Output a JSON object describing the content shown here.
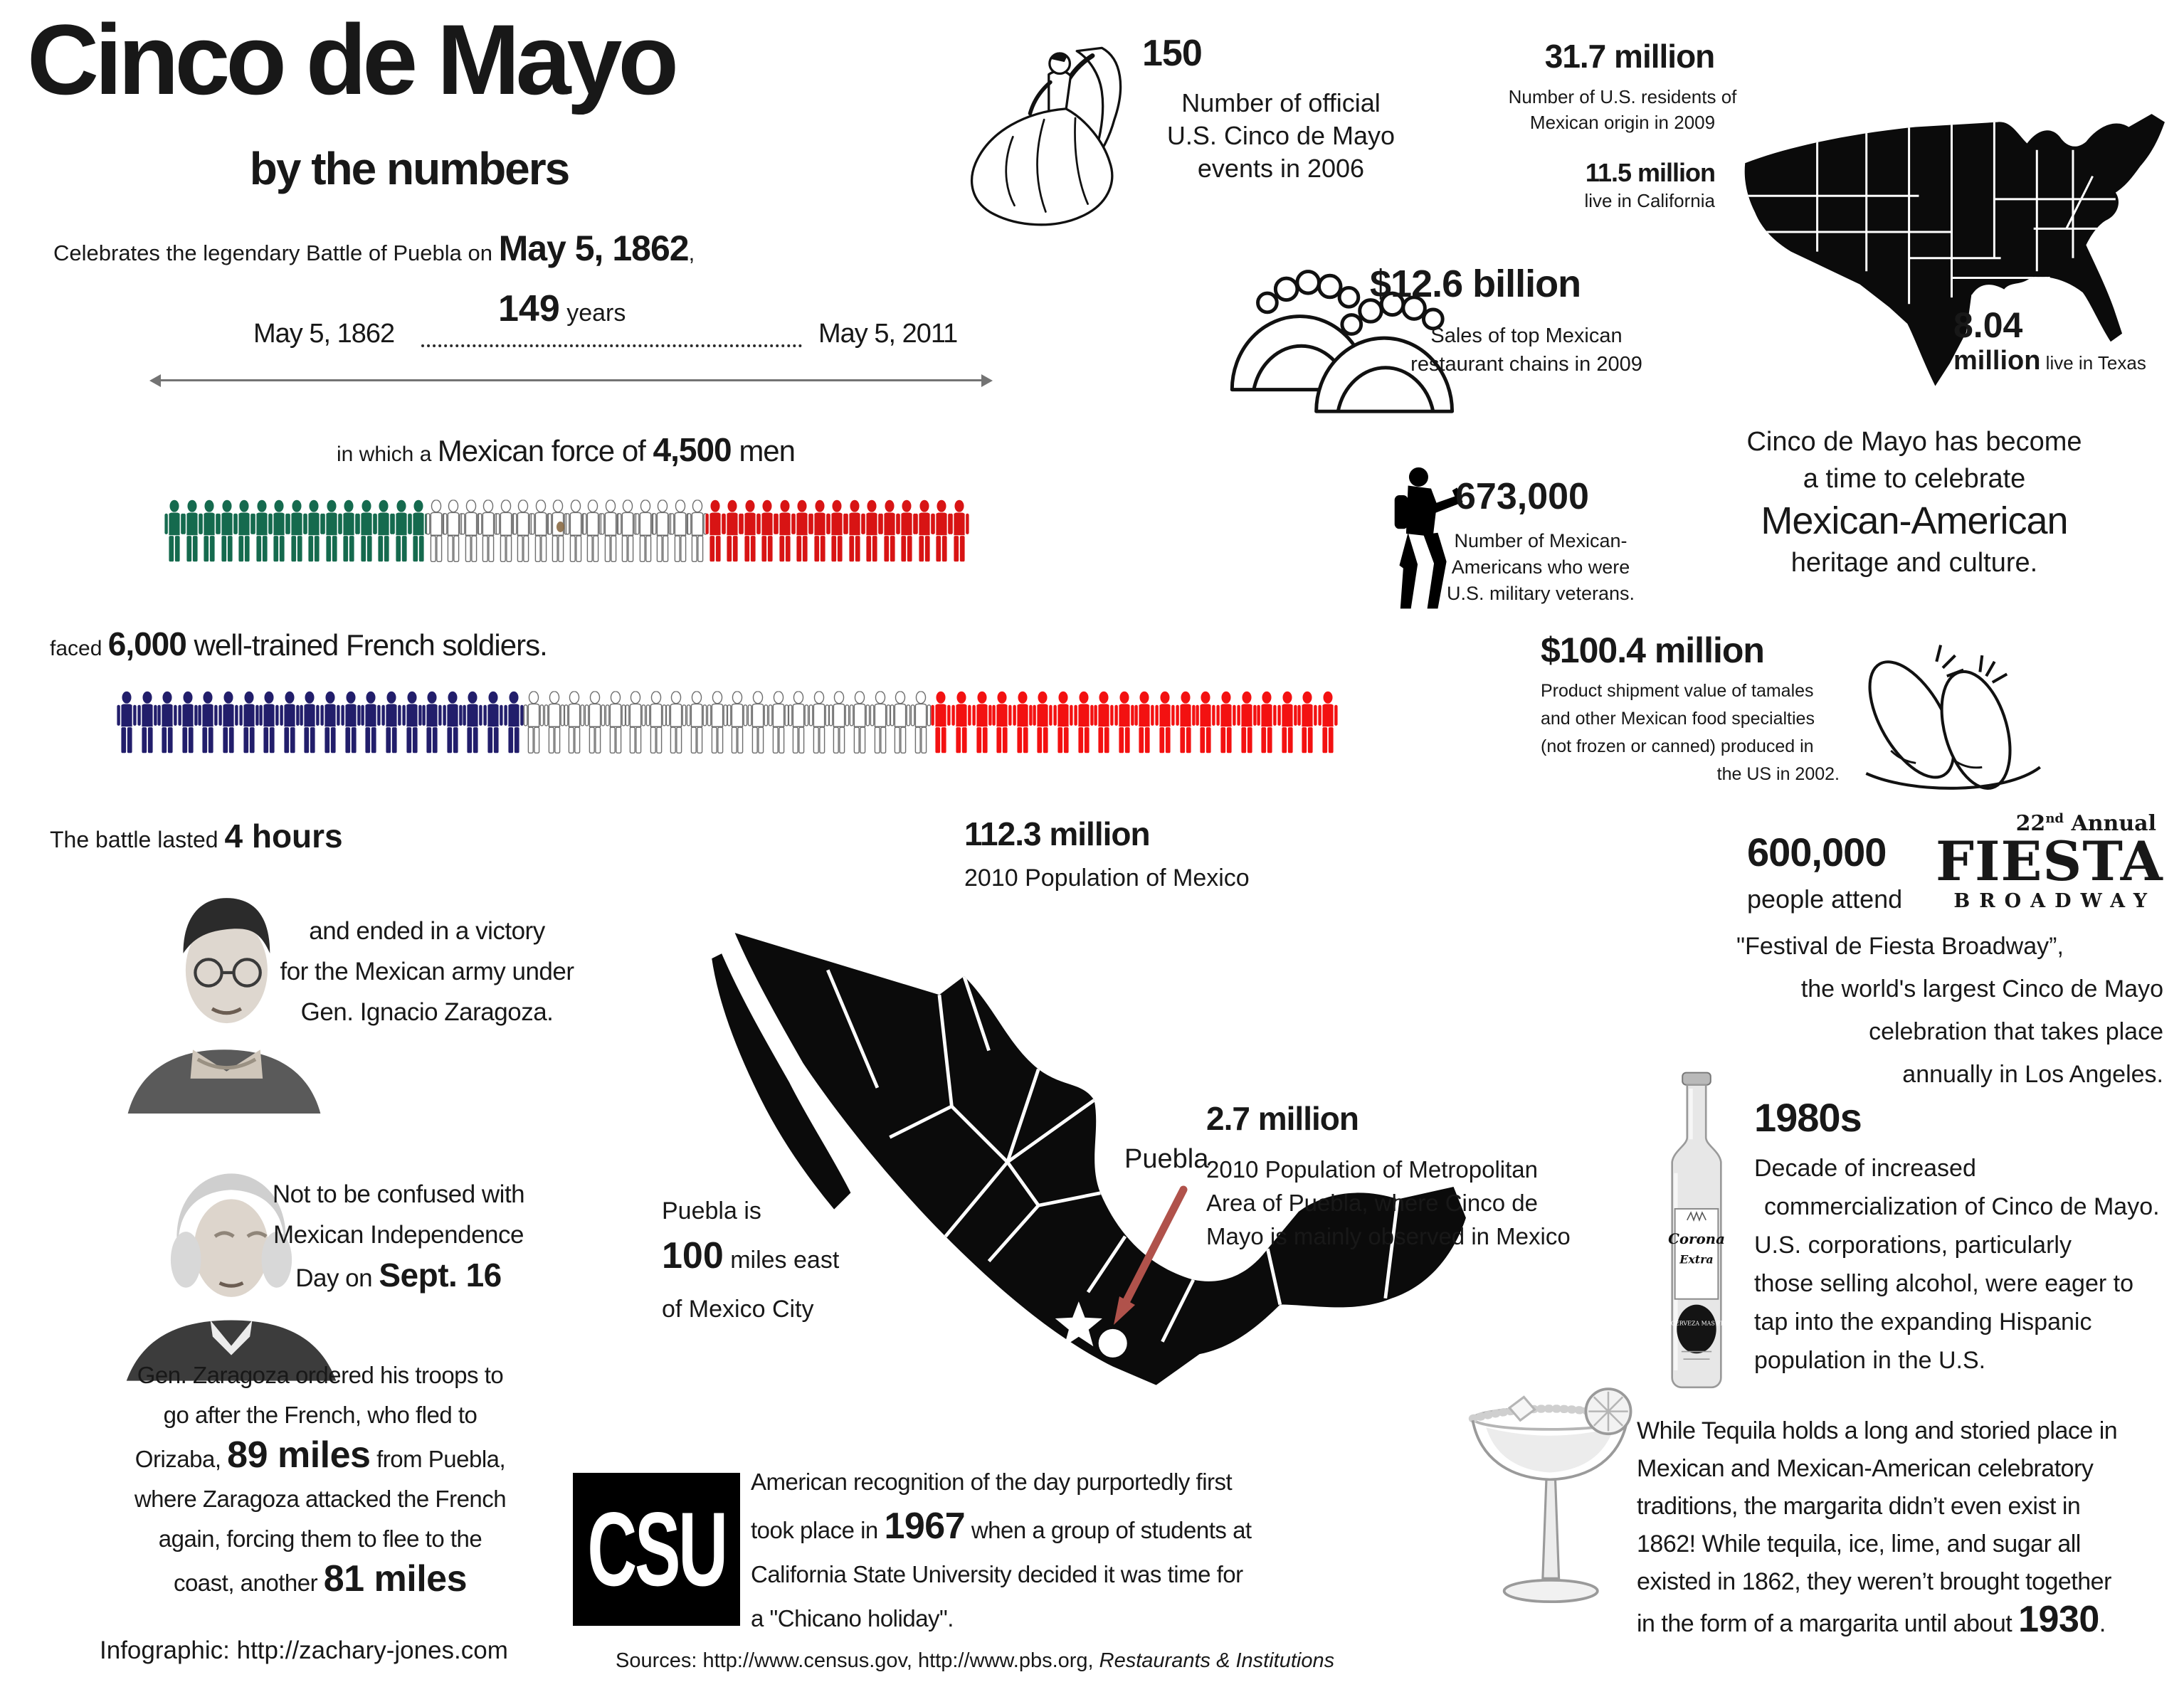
{
  "colors": {
    "mexican_green": "#156a4e",
    "french_navy": "#221e6b",
    "mexican_red": "#d81414",
    "french_red": "#f31111",
    "puebla_arrow": "#b0524b",
    "text": "#181818"
  },
  "title": {
    "main": "Cinco de Mayo",
    "subtitle": "by the numbers"
  },
  "intro": {
    "prefix": "Celebrates the legendary Battle of Puebla on ",
    "date": "May 5, 1862",
    "suffix": ","
  },
  "timeline": {
    "start": "May 5, 1862",
    "end": "May 5, 2011",
    "years": "149",
    "years_unit": " years"
  },
  "mexican_force": {
    "small": "in which a ",
    "big": "Mexican force of ",
    "number": "4,500",
    "tail": " men"
  },
  "french_force": {
    "small": "faced ",
    "number": "6,000",
    "tail": " well-trained French soldiers."
  },
  "figures": {
    "mexican_row": [
      {
        "name": "green",
        "color": "#156a4e",
        "outline": false,
        "count": 15
      },
      {
        "name": "white",
        "color": "#ffffff",
        "outline": true,
        "count": 16
      },
      {
        "name": "red",
        "color": "#d81414",
        "outline": false,
        "count": 15
      }
    ],
    "french_row": [
      {
        "name": "blue",
        "color": "#221e6b",
        "outline": false,
        "count": 20
      },
      {
        "name": "white",
        "color": "#ffffff",
        "outline": true,
        "count": 20
      },
      {
        "name": "red",
        "color": "#f31111",
        "outline": false,
        "count": 20
      }
    ]
  },
  "battle": {
    "prefix": "The battle lasted ",
    "bold": "4 hours"
  },
  "zaragoza": {
    "l1": "and ended in a victory",
    "l2": "for the Mexican army under",
    "l3": "Gen. Ignacio Zaragoza."
  },
  "independence": {
    "l1": "Not to be confused with",
    "l2": "Mexican Independence",
    "l3": "Day on ",
    "date": "Sept. 16"
  },
  "pursuit": {
    "l1": "Gen. Zaragoza ordered his troops to",
    "l2": "go after the French, who fled to",
    "l3a": "Orizaba,  ",
    "l3b": "89 miles",
    "l3c": "  from Puebla,",
    "l4": "where  Zaragoza attacked  the French",
    "l5": "again, forcing them to flee to the",
    "l6a": "coast, another ",
    "l6b": "81 miles"
  },
  "credit": "Infographic: http://zachary-jones.com",
  "sources": {
    "prefix": "Sources: http://www.census.gov, http://www.pbs.org, ",
    "italic": "Restaurants & Institutions"
  },
  "events": {
    "number": "150",
    "l1": "Number of official",
    "l2": "U.S. Cinco de Mayo",
    "l3": "events in 2006"
  },
  "residents": {
    "number": "31.7 million",
    "l1": "Number of U.S. residents of",
    "l2": "Mexican origin in 2009"
  },
  "california": {
    "number": "11.5 million",
    "desc": "live  in California"
  },
  "texas": {
    "number": "8.04",
    "unit": "million",
    "desc": " live  in Texas"
  },
  "restaurants": {
    "number": "$12.6 billion",
    "l1": "Sales of top Mexican",
    "l2": "restaurant chains in 2009"
  },
  "veterans": {
    "number": "673,000",
    "l1": "Number of Mexican-",
    "l2": "Americans who were",
    "l3": "U.S. military veterans."
  },
  "heritage": {
    "l1": "Cinco de Mayo has become",
    "l2": "a time to celebrate",
    "l3": "Mexican-American",
    "l4": "heritage and culture."
  },
  "tamales": {
    "number": "$100.4 million",
    "l1": "Product shipment  value of tamales",
    "l2": "and other Mexican food specialties",
    "l3": "(not frozen or canned) produced in",
    "l4": "the US in 2002."
  },
  "mexico_pop": {
    "number": "112.3 million",
    "desc": "2010 Population of Mexico"
  },
  "puebla_pop": {
    "number": "2.7 million",
    "l1": "2010 Population of Metropolitan",
    "l2": "Area of Puebla, where Cinco de",
    "l3": "Mayo is mainly observed in Mexico"
  },
  "puebla_distance": {
    "l1": "Puebla is",
    "number": "100",
    "l2": " miles east",
    "l3": "of Mexico City"
  },
  "map_labels": {
    "puebla": "Puebla"
  },
  "fiesta": {
    "number": "600,000",
    "attend": "people attend",
    "annual_num": "22",
    "annual_sup": "nd",
    "annual_rest": " Annual",
    "logo_main": "FIESTA",
    "logo_sub": "BROADWAY",
    "l1": "\"Festival de Fiesta Broadway”,",
    "l2": "the world's largest Cinco de Mayo",
    "l3": "celebration that takes place",
    "l4": "annually in Los Angeles."
  },
  "eighties": {
    "number": "1980s",
    "l1": "Decade of increased",
    "l2": "commercialization of Cinco de Mayo.",
    "l3": "U.S. corporations, particularly",
    "l4": "those selling alcohol, were eager to",
    "l5": "tap into the expanding Hispanic",
    "l6": "population in the U.S."
  },
  "corona": {
    "brand": "Corona",
    "brand2": "Extra",
    "oval": "LA CERVEZA MAS FINA"
  },
  "tequila": {
    "l1": "While Tequila holds a long and storied place in",
    "l2": "Mexican and Mexican-American celebratory",
    "l3": "traditions, the margarita didn’t even exist in",
    "l4": "1862! While tequila, ice, lime, and sugar all",
    "l5": "existed in 1862, they weren’t brought together",
    "l6a": "in the form of a margarita until about ",
    "year": "1930",
    "period": "."
  },
  "csu": {
    "logo": "CSU",
    "l1": "American recognition of the day purportedly first",
    "l2a": "took place in ",
    "year": "1967",
    "l2b": " when a group of students at",
    "l3": "California State University decided it was time for",
    "l4": "a \"Chicano holiday\"."
  }
}
